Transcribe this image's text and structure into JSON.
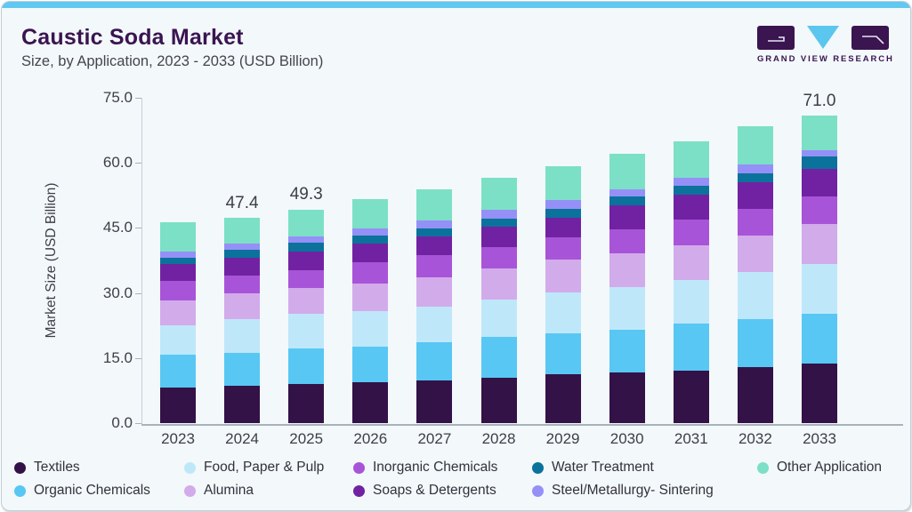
{
  "header": {
    "title": "Caustic Soda Market",
    "subtitle": "Size, by Application, 2023 - 2033 (USD Billion)"
  },
  "logo": {
    "brand": "GRAND VIEW RESEARCH",
    "purple": "#3a1550",
    "blue": "#5bc6ee"
  },
  "chart_data": {
    "type": "bar",
    "stacked": true,
    "categories": [
      "2023",
      "2024",
      "2025",
      "2026",
      "2027",
      "2028",
      "2029",
      "2030",
      "2031",
      "2032",
      "2033"
    ],
    "ylabel": "Market Size (USD Billion)",
    "ylim": [
      0,
      75
    ],
    "ytick_values": [
      0,
      15,
      30,
      45,
      60,
      75
    ],
    "ytick_labels": [
      "0.0",
      "15.0",
      "30.0",
      "45.0",
      "60.0",
      "75.0"
    ],
    "grid": false,
    "bar_total_labels": [
      "",
      "47.4",
      "49.3",
      "",
      "",
      "",
      "",
      "",
      "",
      "",
      "71.0"
    ],
    "series": [
      {
        "name": "Textiles",
        "color": "#331247",
        "values": [
          8.2,
          8.6,
          9.0,
          9.4,
          9.8,
          10.5,
          11.3,
          11.7,
          12.1,
          12.9,
          13.7
        ]
      },
      {
        "name": "Organic Chemicals",
        "color": "#58c7f3",
        "values": [
          7.6,
          7.6,
          8.2,
          8.2,
          8.8,
          9.4,
          9.4,
          9.8,
          10.9,
          11.1,
          11.5
        ]
      },
      {
        "name": "Food, Paper & Pulp",
        "color": "#bfe7fa",
        "values": [
          6.8,
          7.8,
          8.0,
          8.2,
          8.2,
          8.6,
          9.4,
          9.9,
          10.0,
          10.8,
          11.5
        ]
      },
      {
        "name": "Alumina",
        "color": "#d2abeb",
        "values": [
          5.8,
          5.9,
          5.9,
          6.4,
          6.8,
          7.2,
          7.6,
          7.7,
          8.0,
          8.4,
          9.2
        ]
      },
      {
        "name": "Inorganic Chemicals",
        "color": "#a854d8",
        "values": [
          4.5,
          4.1,
          4.1,
          4.9,
          5.1,
          4.9,
          5.1,
          5.6,
          5.9,
          6.2,
          6.4
        ]
      },
      {
        "name": "Soaps & Detergents",
        "color": "#7122a2",
        "values": [
          3.9,
          4.1,
          4.3,
          4.3,
          4.3,
          4.7,
          4.5,
          5.5,
          5.8,
          6.1,
          6.3
        ]
      },
      {
        "name": "Water Treatment",
        "color": "#0b729c",
        "values": [
          1.4,
          1.9,
          2.1,
          1.8,
          1.9,
          1.8,
          2.1,
          2.1,
          2.0,
          2.1,
          2.9
        ]
      },
      {
        "name": "Steel/Metallurgy- Sintering",
        "color": "#9590f7",
        "values": [
          1.5,
          1.4,
          1.4,
          1.7,
          1.8,
          2.1,
          2.0,
          1.6,
          1.9,
          2.0,
          1.6
        ]
      },
      {
        "name": "Other Application",
        "color": "#7ce0c6",
        "values": [
          6.7,
          6.0,
          6.3,
          6.8,
          7.2,
          7.4,
          7.8,
          8.2,
          8.4,
          8.8,
          7.9
        ]
      }
    ],
    "totals": [
      46.4,
      47.4,
      49.3,
      51.7,
      53.9,
      56.6,
      59.2,
      62.1,
      65.0,
      68.4,
      71.0
    ],
    "legend_rows": [
      [
        "Textiles",
        "Food, Paper & Pulp",
        "Inorganic Chemicals",
        "Water Treatment",
        "Other Application"
      ],
      [
        "Organic Chemicals",
        "Alumina",
        "Soaps & Detergents",
        "Steel/Metallurgy- Sintering"
      ]
    ],
    "legend_position": "bottom"
  }
}
